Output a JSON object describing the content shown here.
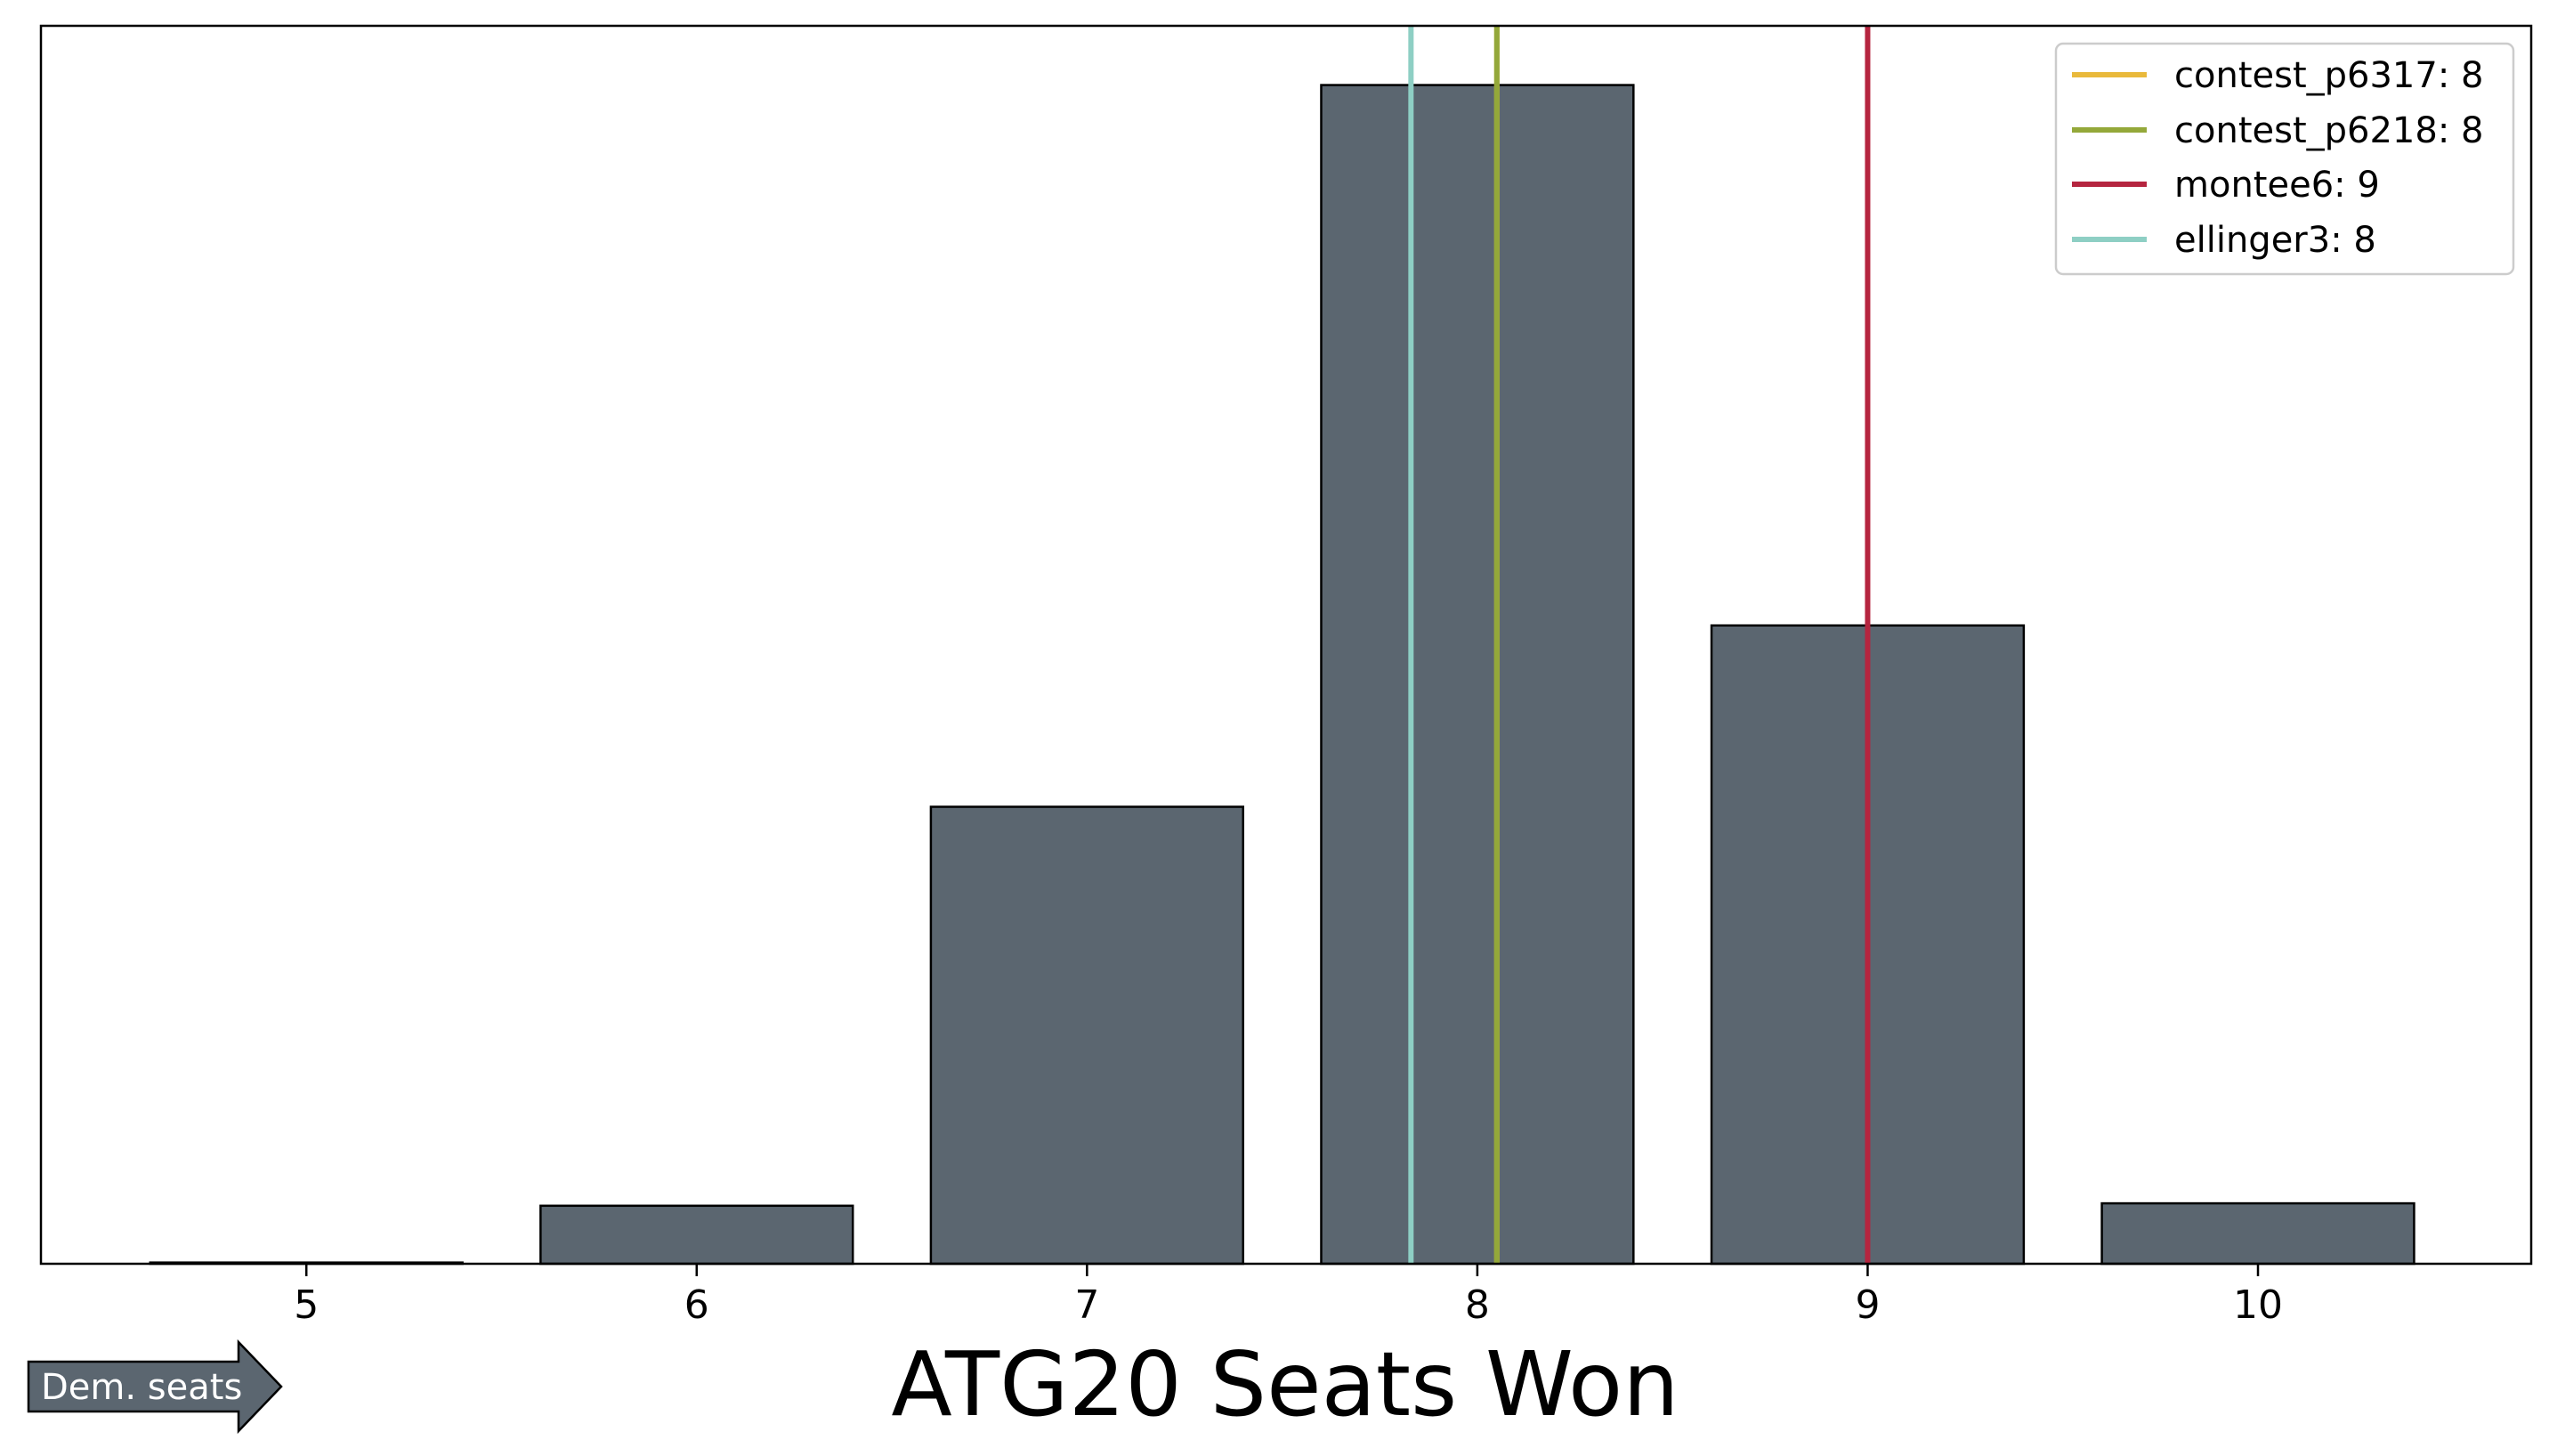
{
  "chart_data": {
    "type": "bar",
    "title": "",
    "xlabel": "ATG20 Seats Won",
    "ylabel": "",
    "x": [
      5,
      6,
      7,
      8,
      9,
      10
    ],
    "tick_labels": [
      "5",
      "6",
      "7",
      "8",
      "9",
      "10"
    ],
    "values": [
      0.1,
      4.8,
      37.8,
      97.5,
      52.8,
      5.0
    ],
    "xlim": [
      4.32,
      10.7
    ],
    "ylim": [
      0,
      102.4
    ],
    "bar_color": "#5b6670",
    "bar_edge_color": "#000000",
    "grid": false,
    "y_ticks_shown": false,
    "legend_position": "top-right",
    "reference_lines": [
      {
        "name": "contest_p6317",
        "label": "contest_p6317: 8",
        "x": 8.05,
        "color": "#e9b93b"
      },
      {
        "name": "contest_p6218",
        "label": "contest_p6218: 8",
        "x": 8.05,
        "color": "#94a83a"
      },
      {
        "name": "montee6",
        "label": "montee6: 9",
        "x": 9,
        "color": "#b5253f"
      },
      {
        "name": "ellinger3",
        "label": "ellinger3: 8",
        "x": 7.83,
        "color": "#8ecfc4"
      }
    ],
    "annotation": {
      "text": "Dem. seats",
      "shape": "right-arrow",
      "color": "#5b6670"
    }
  }
}
